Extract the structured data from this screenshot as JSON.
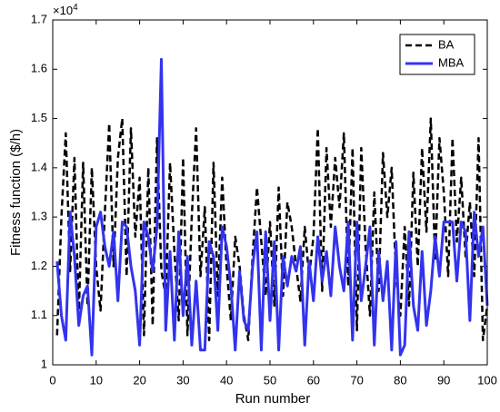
{
  "chart_data": {
    "type": "line",
    "x_label": "Run number",
    "y_label": "Fitness function ($/h)",
    "y_multiplier": {
      "base": "×10",
      "exponent": "4"
    },
    "legend": "northeast",
    "x": [
      1,
      2,
      3,
      4,
      5,
      6,
      7,
      8,
      9,
      10,
      11,
      12,
      13,
      14,
      15,
      16,
      17,
      18,
      19,
      20,
      21,
      22,
      23,
      24,
      25,
      26,
      27,
      28,
      29,
      30,
      31,
      32,
      33,
      34,
      35,
      36,
      37,
      38,
      39,
      40,
      41,
      42,
      43,
      44,
      45,
      46,
      47,
      48,
      49,
      50,
      51,
      52,
      53,
      54,
      55,
      56,
      57,
      58,
      59,
      60,
      61,
      62,
      63,
      64,
      65,
      66,
      67,
      68,
      69,
      70,
      71,
      72,
      73,
      74,
      75,
      76,
      77,
      78,
      79,
      80,
      81,
      82,
      83,
      84,
      85,
      86,
      87,
      88,
      89,
      90,
      91,
      92,
      93,
      94,
      95,
      96,
      97,
      98,
      99,
      100
    ],
    "series": [
      {
        "name": "BA",
        "color": "#000000",
        "dash": true,
        "values": [
          1.06,
          1.3,
          1.47,
          1.19,
          1.42,
          1.1,
          1.41,
          1.12,
          1.4,
          1.2,
          1.11,
          1.31,
          1.49,
          1.2,
          1.42,
          1.5,
          1.18,
          1.48,
          1.26,
          1.38,
          1.06,
          1.4,
          1.08,
          1.46,
          1.19,
          1.14,
          1.41,
          1.23,
          1.09,
          1.42,
          1.06,
          1.3,
          1.48,
          1.18,
          1.32,
          1.05,
          1.41,
          1.14,
          1.38,
          1.2,
          1.09,
          1.26,
          1.2,
          1.1,
          1.05,
          1.22,
          1.36,
          1.25,
          1.14,
          1.29,
          1.12,
          1.36,
          1.14,
          1.33,
          1.28,
          1.2,
          1.13,
          1.28,
          1.18,
          1.26,
          1.48,
          1.15,
          1.44,
          1.28,
          1.42,
          1.32,
          1.47,
          1.16,
          1.44,
          1.07,
          1.44,
          1.24,
          1.1,
          1.35,
          1.15,
          1.43,
          1.3,
          1.4,
          1.18,
          1.1,
          1.28,
          1.12,
          1.39,
          1.2,
          1.44,
          1.27,
          1.5,
          1.21,
          1.46,
          1.35,
          1.18,
          1.46,
          1.25,
          1.38,
          1.22,
          1.33,
          1.18,
          1.46,
          1.05,
          1.12
        ]
      },
      {
        "name": "MBA",
        "color": "#3333ee",
        "dash": false,
        "values": [
          1.21,
          1.1,
          1.05,
          1.31,
          1.22,
          1.08,
          1.14,
          1.16,
          1.02,
          1.28,
          1.31,
          1.24,
          1.2,
          1.27,
          1.13,
          1.29,
          1.28,
          1.2,
          1.15,
          1.04,
          1.29,
          1.26,
          1.19,
          1.28,
          1.62,
          1.07,
          1.23,
          1.05,
          1.27,
          1.1,
          1.22,
          1.04,
          1.17,
          1.03,
          1.03,
          1.25,
          1.22,
          1.07,
          1.28,
          1.24,
          1.16,
          1.03,
          1.19,
          1.09,
          1.07,
          1.2,
          1.27,
          1.03,
          1.27,
          1.09,
          1.25,
          1.03,
          1.22,
          1.16,
          1.22,
          1.19,
          1.24,
          1.04,
          1.21,
          1.13,
          1.26,
          1.17,
          1.23,
          1.14,
          1.28,
          1.2,
          1.15,
          1.29,
          1.05,
          1.29,
          1.13,
          1.2,
          1.28,
          1.04,
          1.23,
          1.13,
          1.21,
          1.03,
          1.25,
          1.02,
          1.04,
          1.27,
          1.12,
          1.07,
          1.23,
          1.08,
          1.15,
          1.26,
          1.18,
          1.29,
          1.29,
          1.29,
          1.17,
          1.29,
          1.27,
          1.09,
          1.31,
          1.22,
          1.28,
          1.12
        ]
      }
    ],
    "xlim": [
      0,
      100
    ],
    "xticks": [
      0,
      10,
      20,
      30,
      40,
      50,
      60,
      70,
      80,
      90,
      100
    ],
    "ylim": [
      1,
      1.7
    ],
    "yticks": [
      1,
      1.1,
      1.2,
      1.3,
      1.4,
      1.5,
      1.6,
      1.7
    ]
  }
}
